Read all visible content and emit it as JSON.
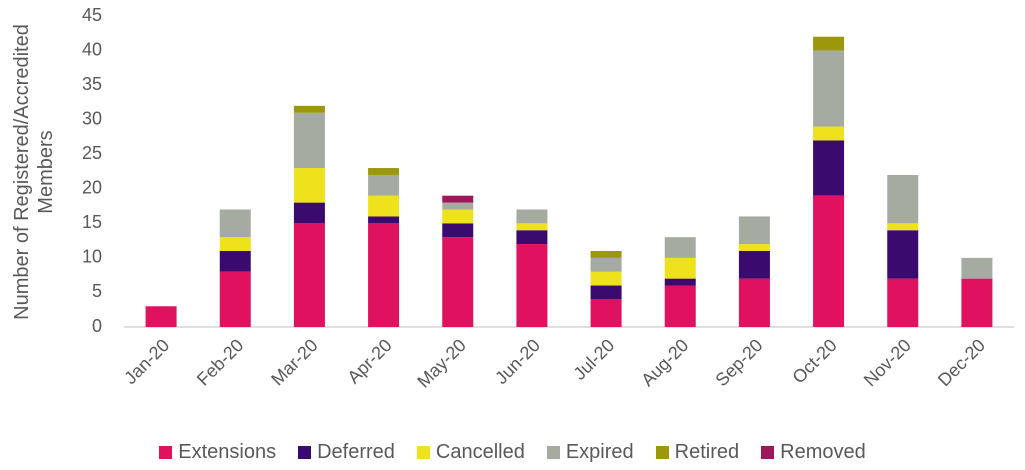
{
  "chart_data": {
    "type": "stacked_bar",
    "y_label": "Number of Registered/Accredited Members",
    "categories": [
      "Jan-20",
      "Feb-20",
      "Mar-20",
      "Apr-20",
      "May-20",
      "Jun-20",
      "Jul-20",
      "Aug-20",
      "Sep-20",
      "Oct-20",
      "Nov-20",
      "Dec-20"
    ],
    "series": [
      {
        "name": "Extensions",
        "color": "#e0115f",
        "values": [
          3,
          8,
          15,
          15,
          13,
          12,
          4,
          6,
          7,
          19,
          7,
          7
        ]
      },
      {
        "name": "Deferred",
        "color": "#3a0a6e",
        "values": [
          0,
          3,
          3,
          1,
          2,
          2,
          2,
          1,
          4,
          8,
          7,
          0
        ]
      },
      {
        "name": "Cancelled",
        "color": "#ede21c",
        "values": [
          0,
          2,
          5,
          3,
          2,
          1,
          2,
          3,
          1,
          2,
          1,
          0
        ]
      },
      {
        "name": "Expired",
        "color": "#a6aba1",
        "values": [
          0,
          4,
          8,
          3,
          1,
          2,
          2,
          3,
          4,
          11,
          7,
          3
        ]
      },
      {
        "name": "Retired",
        "color": "#9c980c",
        "values": [
          0,
          0,
          1,
          1,
          0,
          0,
          1,
          0,
          0,
          2,
          0,
          0
        ]
      },
      {
        "name": "Removed",
        "color": "#a0185a",
        "values": [
          0,
          0,
          0,
          0,
          1,
          0,
          0,
          0,
          0,
          0,
          0,
          0
        ]
      }
    ],
    "ylim": [
      0,
      45
    ],
    "yticks": [
      0,
      5,
      10,
      15,
      20,
      25,
      30,
      35,
      40,
      45
    ],
    "grid": false,
    "legend": "bottom"
  }
}
